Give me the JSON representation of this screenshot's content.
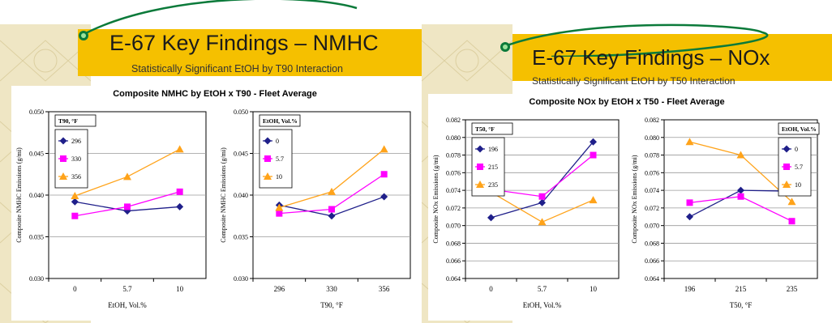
{
  "slides": [
    {
      "title": "E-67 Key Findings – NMHC",
      "subtitle": "Statistically Significant EtOH by T90 Interaction",
      "chart_heading": "Composite NMHC by EtOH x T90 - Fleet Average"
    },
    {
      "title": "E-67 Key Findings – NOx",
      "subtitle": "Statistically Significant EtOH by T50 Interaction",
      "chart_heading": "Composite NOx by EtOH x T50 - Fleet Average"
    }
  ],
  "colors": {
    "series_blue": "#1f1f8a",
    "series_magenta": "#ff00ff",
    "series_orange": "#ffa31a",
    "title_bar": "#f5c000",
    "side_strip": "#efe6c4",
    "swoosh": "#0b7a3a"
  },
  "chart_data": [
    {
      "type": "line",
      "xlabel": "EtOH, Vol.%",
      "ylabel": "Composite NMHC Emissions (g/mi)",
      "categories": [
        "0",
        "5.7",
        "10"
      ],
      "ylim": [
        0.03,
        0.05
      ],
      "yticks": [
        "0.030",
        "0.035",
        "0.040",
        "0.045",
        "0.050"
      ],
      "legend_title": "T90, °F",
      "legend_position": "top-left",
      "grid": true,
      "series": [
        {
          "name": "296",
          "color": "#1f1f8a",
          "marker": "diamond",
          "values": [
            0.0392,
            0.0381,
            0.0386
          ]
        },
        {
          "name": "330",
          "color": "#ff00ff",
          "marker": "square",
          "values": [
            0.0375,
            0.0386,
            0.0404
          ]
        },
        {
          "name": "356",
          "color": "#ffa31a",
          "marker": "triangle",
          "values": [
            0.0399,
            0.0422,
            0.0455
          ]
        }
      ]
    },
    {
      "type": "line",
      "xlabel": "T90, °F",
      "ylabel": "Composite NMHC Emissions (g/mi)",
      "categories": [
        "296",
        "330",
        "356"
      ],
      "ylim": [
        0.03,
        0.05
      ],
      "yticks": [
        "0.030",
        "0.035",
        "0.040",
        "0.045",
        "0.050"
      ],
      "legend_title": "EtOH, Vol.%",
      "legend_position": "top-left",
      "grid": true,
      "series": [
        {
          "name": "0",
          "color": "#1f1f8a",
          "marker": "diamond",
          "values": [
            0.0388,
            0.0375,
            0.0398
          ]
        },
        {
          "name": "5.7",
          "color": "#ff00ff",
          "marker": "square",
          "values": [
            0.0378,
            0.0383,
            0.0425
          ]
        },
        {
          "name": "10",
          "color": "#ffa31a",
          "marker": "triangle",
          "values": [
            0.0385,
            0.0404,
            0.0455
          ]
        }
      ]
    },
    {
      "type": "line",
      "xlabel": "EtOH, Vol.%",
      "ylabel": "Composite NOx Emissions (g/mi)",
      "categories": [
        "0",
        "5.7",
        "10"
      ],
      "ylim": [
        0.064,
        0.082
      ],
      "yticks": [
        "0.064",
        "0.066",
        "0.068",
        "0.070",
        "0.072",
        "0.074",
        "0.076",
        "0.078",
        "0.080",
        "0.082"
      ],
      "legend_title": "T50, °F",
      "legend_position": "top-left",
      "grid": true,
      "series": [
        {
          "name": "196",
          "color": "#1f1f8a",
          "marker": "diamond",
          "values": [
            0.0709,
            0.0726,
            0.0795
          ]
        },
        {
          "name": "215",
          "color": "#ff00ff",
          "marker": "square",
          "values": [
            0.0741,
            0.0733,
            0.078
          ]
        },
        {
          "name": "235",
          "color": "#ffa31a",
          "marker": "triangle",
          "values": [
            0.0738,
            0.0704,
            0.0729
          ]
        }
      ]
    },
    {
      "type": "line",
      "xlabel": "T50, °F",
      "ylabel": "Composite NOx Emissions (g/mi)",
      "categories": [
        "196",
        "215",
        "235"
      ],
      "ylim": [
        0.064,
        0.082
      ],
      "yticks": [
        "0.064",
        "0.066",
        "0.068",
        "0.070",
        "0.072",
        "0.074",
        "0.076",
        "0.078",
        "0.080",
        "0.082"
      ],
      "legend_title": "EtOH, Vol.%",
      "legend_position": "top-right",
      "grid": true,
      "series": [
        {
          "name": "0",
          "color": "#1f1f8a",
          "marker": "diamond",
          "values": [
            0.071,
            0.074,
            0.0739
          ]
        },
        {
          "name": "5.7",
          "color": "#ff00ff",
          "marker": "square",
          "values": [
            0.0726,
            0.0733,
            0.0705
          ]
        },
        {
          "name": "10",
          "color": "#ffa31a",
          "marker": "triangle",
          "values": [
            0.0795,
            0.078,
            0.0727
          ]
        }
      ]
    }
  ]
}
